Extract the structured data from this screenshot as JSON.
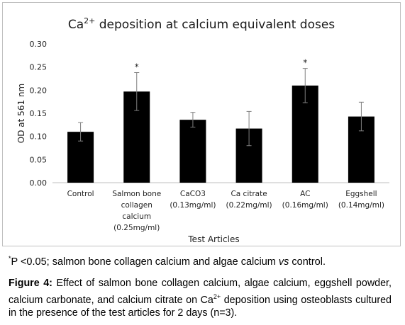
{
  "chart_data": {
    "type": "bar",
    "title_main": "Ca",
    "title_sup": "2+",
    "title_rest": " deposition at calcium equivalent doses",
    "ylabel": "OD at 561 nm",
    "xlabel": "Test Articles",
    "ylim": [
      0,
      0.3
    ],
    "yticks": [
      "0.00",
      "0.05",
      "0.10",
      "0.15",
      "0.20",
      "0.25",
      "0.30"
    ],
    "grid": false,
    "bar_color": "#000000",
    "categories": [
      [
        "Control"
      ],
      [
        "Salmon bone",
        "collagen",
        "calcium",
        "(0.25mg/ml)"
      ],
      [
        "CaCO3",
        "(0.13mg/ml)"
      ],
      [
        "Ca citrate",
        "(0.22mg/ml)"
      ],
      [
        "AC",
        "(0.16mg/ml)"
      ],
      [
        "Eggshell",
        "(0.14mg/ml)"
      ]
    ],
    "values": [
      0.11,
      0.197,
      0.136,
      0.117,
      0.21,
      0.143
    ],
    "errors": [
      0.02,
      0.041,
      0.016,
      0.037,
      0.037,
      0.031
    ],
    "significance": [
      "",
      "*",
      "",
      "",
      "*",
      ""
    ]
  },
  "footnote": {
    "marker": "*",
    "text": "P <0.05; salmon bone collagen calcium and algae calcium ",
    "italic": "vs",
    "tail": " control."
  },
  "caption": {
    "label": "Figure 4:",
    "text1": " Effect of salmon bone collagen calcium, algae calcium, eggshell powder, calcium carbonate, and calcium citrate on Ca",
    "sup": "2+",
    "text2": " deposition using osteoblasts cultured in the presence of the test articles for 2 days (n=3)."
  }
}
